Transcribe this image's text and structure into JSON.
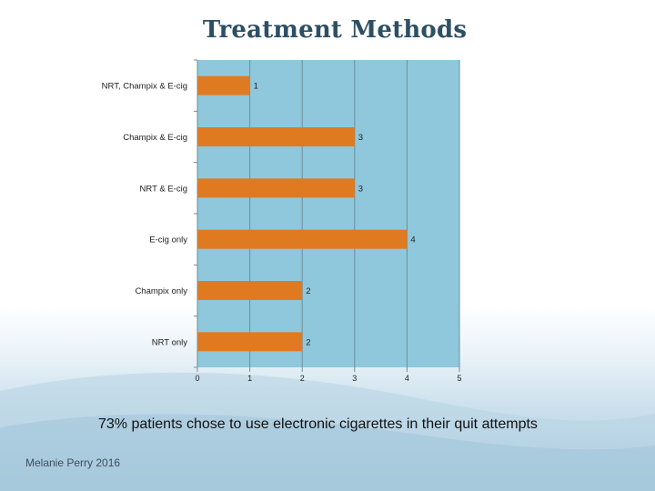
{
  "slide": {
    "title": "Treatment Methods",
    "caption": "73% patients chose to use electronic cigarettes in their quit attempts",
    "author": "Melanie Perry 2016"
  },
  "colors": {
    "plot_background": "#8fc8dc",
    "bar": "#e07a21",
    "grid": "#6f8e9a",
    "label": "#222222"
  },
  "chart_data": {
    "type": "bar",
    "orientation": "horizontal",
    "title": "Treatment Methods",
    "categories": [
      "NRT, Champix & E-cig",
      "Champix & E-cig",
      "NRT & E-cig",
      "E-cig only",
      "Champix only",
      "NRT only"
    ],
    "values": [
      1,
      3,
      3,
      4,
      2,
      2
    ],
    "data_labels": [
      "1",
      "3",
      "3",
      "4",
      "2",
      "2"
    ],
    "x_ticks": [
      "0",
      "1",
      "2",
      "3",
      "4",
      "5"
    ],
    "xlim": [
      0,
      5
    ],
    "grid": true,
    "legend": "none"
  }
}
